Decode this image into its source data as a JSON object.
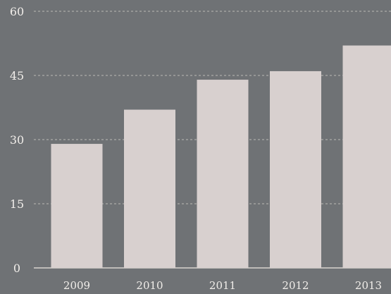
{
  "chart_data": {
    "type": "bar",
    "categories": [
      "2009",
      "2010",
      "2011",
      "2012",
      "2013"
    ],
    "values": [
      29,
      37,
      44,
      46,
      52
    ],
    "title": "",
    "xlabel": "",
    "ylabel": "",
    "ylim": [
      0,
      60
    ],
    "yticks": [
      0,
      15,
      30,
      45,
      60
    ],
    "ytick_labels": [
      "0",
      "15",
      "30",
      "45",
      "60"
    ],
    "grid": true,
    "legend": "none",
    "colors": {
      "background": "#6f7275",
      "bar": "#d8d0cf",
      "text": "#f1eeea",
      "grid": "#c9c6c1"
    }
  }
}
